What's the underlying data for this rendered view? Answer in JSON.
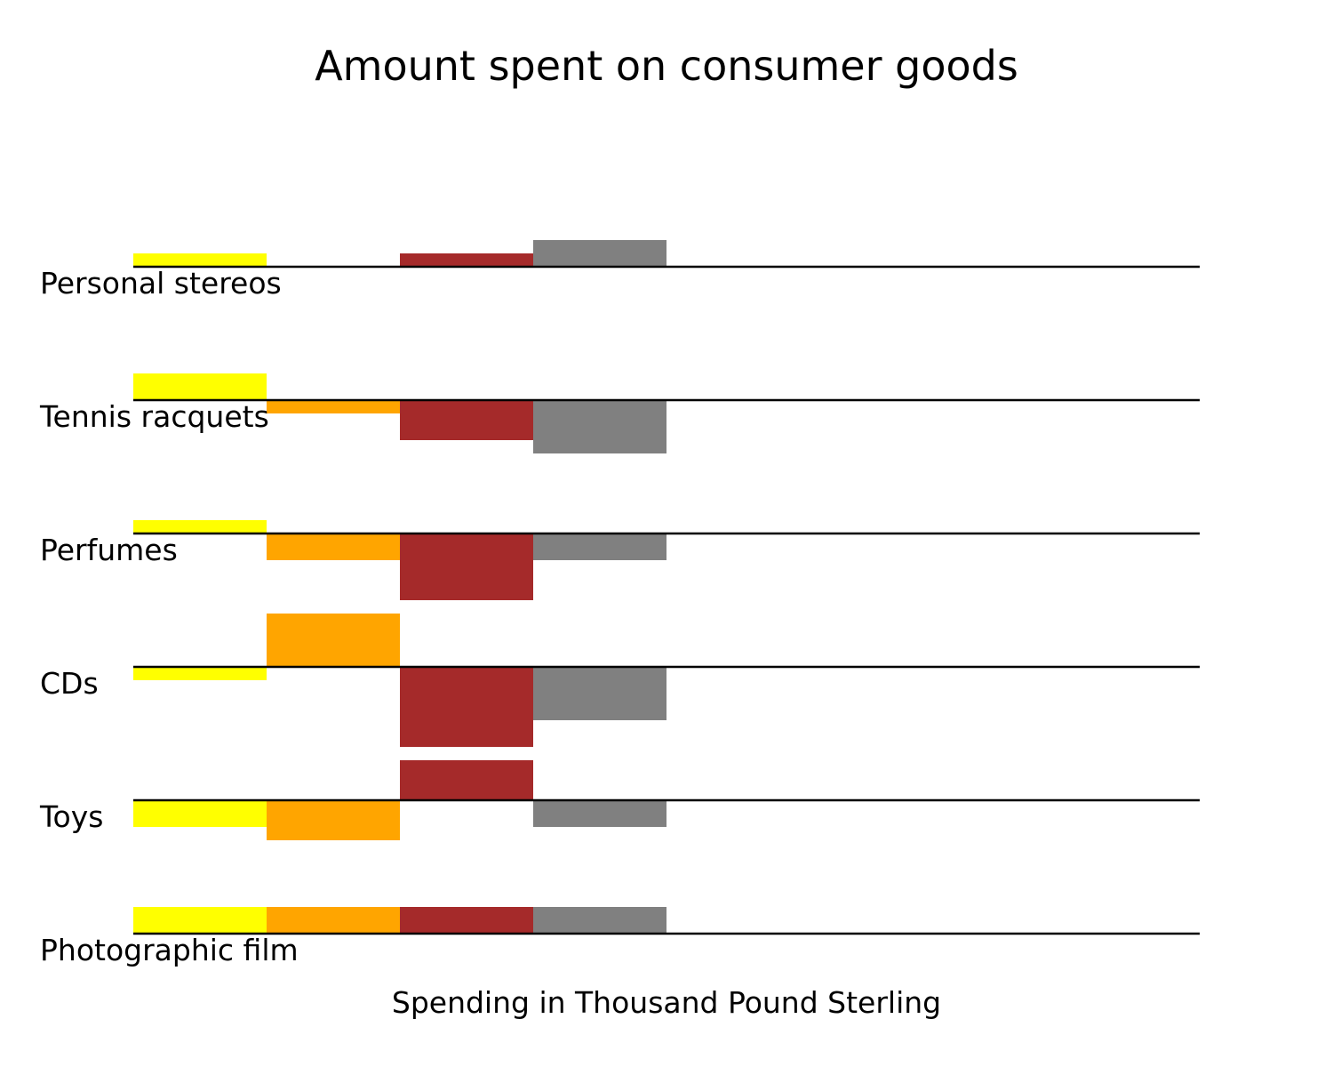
{
  "chart_data": {
    "type": "bar",
    "title": "Amount spent on consumer goods",
    "xlabel": "Spending in Thousand Pound Sterling",
    "ylabel": "",
    "categories": [
      "Personal stereos",
      "Tennis racquets",
      "Perfumes",
      "CDs",
      "Toys",
      "Photographic film"
    ],
    "series": [
      {
        "color": "#ffff00",
        "values": [
          1,
          2,
          1,
          -1,
          -2,
          2
        ]
      },
      {
        "color": "#ffa500",
        "values": [
          0,
          -1,
          -2,
          4,
          -3,
          2
        ]
      },
      {
        "color": "#a52a2a",
        "values": [
          1,
          -3,
          -5,
          -6,
          3,
          2
        ]
      },
      {
        "color": "#808080",
        "values": [
          2,
          -4,
          -2,
          -4,
          -2,
          2
        ]
      }
    ],
    "grid": false,
    "legend": "none"
  }
}
